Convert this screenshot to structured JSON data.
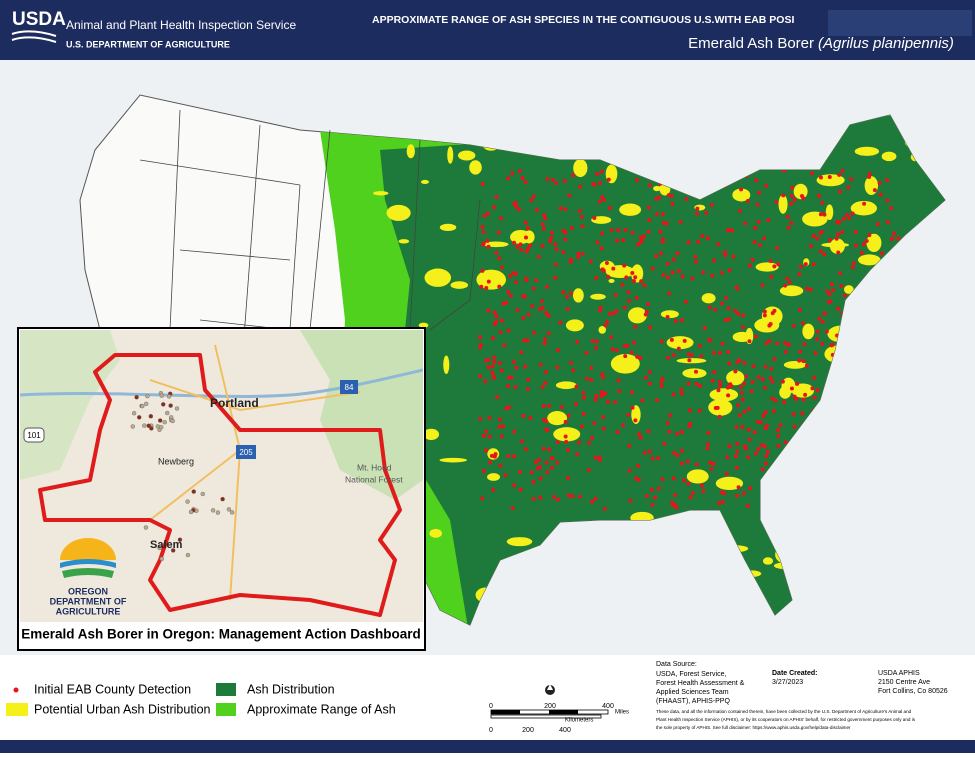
{
  "header": {
    "agency_logo": "USDA",
    "agency_name": "Animal and Plant Health Inspection Service",
    "department": "U.S. DEPARTMENT OF AGRICULTURE",
    "map_title": "APPROXIMATE RANGE OF ASH SPECIES IN THE CONTIGUOUS U.S.WITH EAB POSI",
    "subject": "Emerald Ash Borer",
    "scientific_name": "(Agrilus planipennis)"
  },
  "inset": {
    "places": [
      "Portland",
      "Newberg",
      "Salem",
      "Mt. Hood",
      "National Forest"
    ],
    "routes": [
      "101",
      "84",
      "205"
    ],
    "logo_text": [
      "OREGON",
      "DEPARTMENT OF",
      "AGRICULTURE"
    ],
    "caption": "Emerald Ash Borer in Oregon: Management Action Dashboard"
  },
  "legend": [
    "Initial EAB County Detection",
    "Ash Distribution",
    "Potential Urban Ash Distribution",
    "Approximate Range of Ash"
  ],
  "scale_bar": {
    "miles": [
      "0",
      "200",
      "400"
    ],
    "miles_unit": "Miles",
    "kilometers": [
      "0",
      "200",
      "400"
    ],
    "kilometers_unit": "Kilometers"
  },
  "credits": {
    "source_heading": "Data Source:",
    "source_lines": [
      "USDA, Forest Service,",
      "Forest Health Assessment &",
      "Applied Sciences Team",
      "(FHAAST), APHIS-PPQ"
    ],
    "date_heading": "Date Created:",
    "date": "3/27/2023",
    "address": [
      "USDA APHIS",
      "2150 Centre Ave",
      "Fort Collins, Co 80526"
    ],
    "disclaimer": [
      "These data, and all the information contained therein, have been collected by the U.S. Department of Agriculture's Animal and",
      "Plant Health Inspection Service (APHIS), or by its cooperators on APHIS' behalf, for restricted government purposes only and is",
      "the sole property of APHIS. See full disclaimer: https://www.aphis.usda.gov/help/data-disclaimer"
    ]
  }
}
